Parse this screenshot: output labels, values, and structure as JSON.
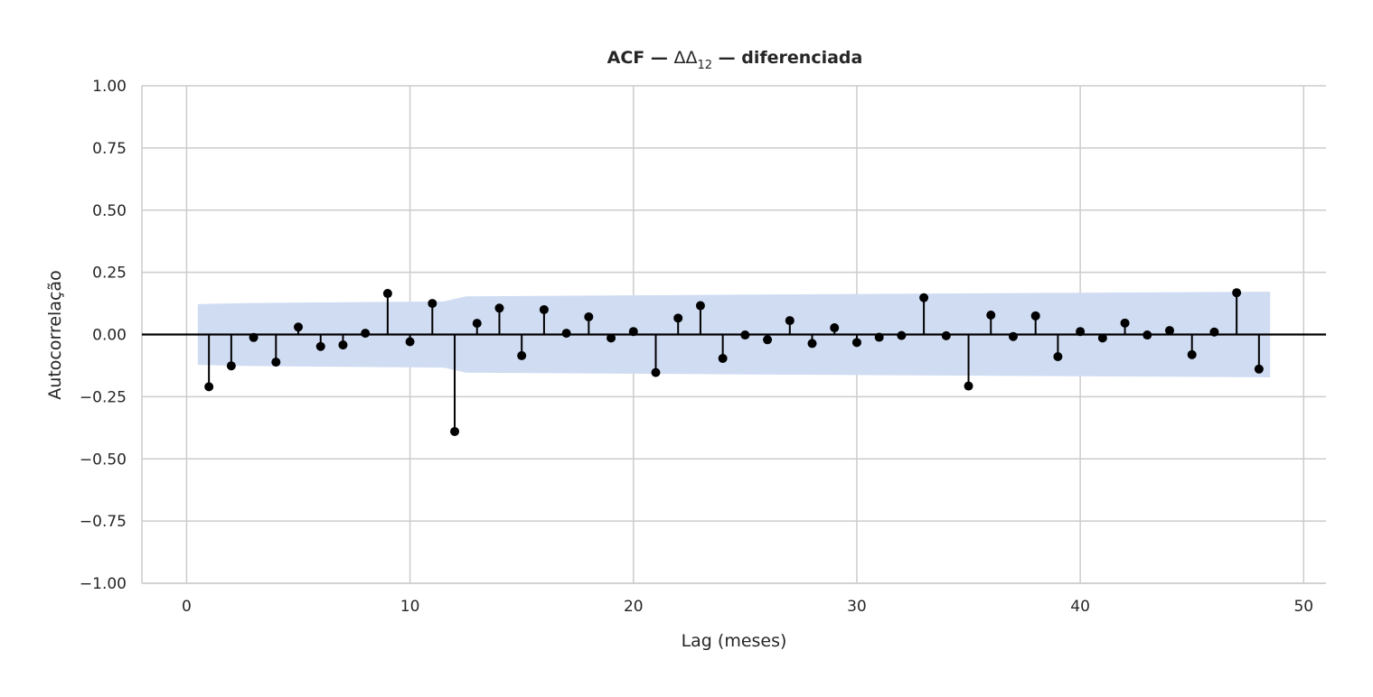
{
  "chart_data": {
    "type": "stem",
    "title_prefix": "ACF — ",
    "title_symbol": "ΔΔ",
    "title_subscript": "12",
    "title_suffix": " — diferenciada",
    "xlabel": "Lag (meses)",
    "ylabel": "Autocorrelação",
    "xlim": [
      -2,
      51
    ],
    "ylim": [
      -1.0,
      1.0
    ],
    "xticks": [
      0,
      10,
      20,
      30,
      40,
      50
    ],
    "xtick_labels": [
      "0",
      "10",
      "20",
      "30",
      "40",
      "50"
    ],
    "yticks": [
      1.0,
      0.75,
      0.5,
      0.25,
      0.0,
      -0.25,
      -0.5,
      -0.75,
      -1.0
    ],
    "ytick_labels": [
      "1.00",
      "0.75",
      "0.50",
      "0.25",
      "0.00",
      "−0.25",
      "−0.50",
      "−0.75",
      "−1.00"
    ],
    "grid": true,
    "colors": {
      "stem": "#000000",
      "confidence_band": "#cfdcf2",
      "grid": "#cccccc",
      "zero_line": "#000000"
    },
    "lags": [
      1,
      2,
      3,
      4,
      5,
      6,
      7,
      8,
      9,
      10,
      11,
      12,
      13,
      14,
      15,
      16,
      17,
      18,
      19,
      20,
      21,
      22,
      23,
      24,
      25,
      26,
      27,
      28,
      29,
      30,
      31,
      32,
      33,
      34,
      35,
      36,
      37,
      38,
      39,
      40,
      41,
      42,
      43,
      44,
      45,
      46,
      47,
      48
    ],
    "values": [
      -0.21,
      -0.126,
      -0.012,
      -0.111,
      0.03,
      -0.048,
      -0.042,
      0.005,
      0.165,
      -0.029,
      0.125,
      -0.39,
      0.045,
      0.106,
      -0.085,
      0.1,
      0.005,
      0.071,
      -0.014,
      0.012,
      -0.153,
      0.066,
      0.116,
      -0.096,
      -0.002,
      -0.021,
      0.056,
      -0.036,
      0.027,
      -0.032,
      -0.011,
      -0.004,
      0.148,
      -0.005,
      -0.207,
      0.078,
      -0.008,
      0.075,
      -0.089,
      0.012,
      -0.014,
      0.046,
      -0.002,
      0.016,
      -0.081,
      0.01,
      0.168,
      -0.139
    ],
    "confidence_band": {
      "x": [
        0.5,
        1.5,
        2.5,
        4.5,
        11.5,
        12.5,
        24.5,
        48.5
      ],
      "upper": [
        0.122,
        0.124,
        0.126,
        0.128,
        0.133,
        0.153,
        0.16,
        0.172
      ]
    }
  }
}
